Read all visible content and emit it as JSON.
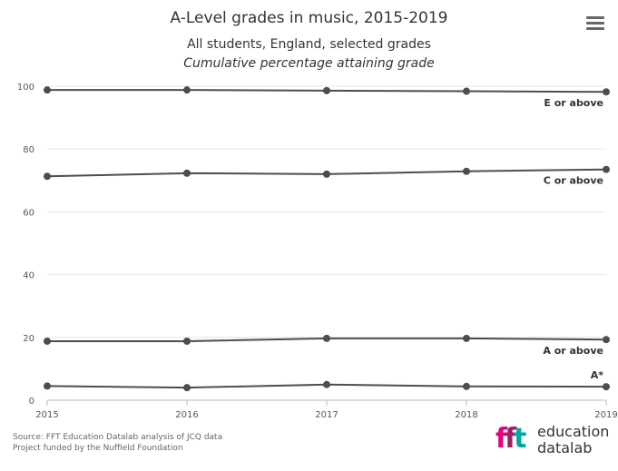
{
  "header": {
    "title": "A-Level grades in music, 2015-2019",
    "subtitle": "All students, England, selected grades",
    "subtitle2": "Cumulative percentage attaining grade",
    "menu_icon": "hamburger-menu-icon"
  },
  "footer": {
    "source_line1": "Source: FFT Education Datalab analysis of JCQ data",
    "source_line2": "Project funded by the Nuffield Foundation",
    "logo_mark": "fft",
    "logo_line1": "education",
    "logo_line2": "datalab",
    "logo_colors": [
      "#e6007e",
      "#9e1f63",
      "#00a99d"
    ]
  },
  "chart_data": {
    "type": "line",
    "title": "A-Level grades in music, 2015-2019",
    "subtitle": "All students, England, selected grades",
    "x": [
      "2015",
      "2016",
      "2017",
      "2018",
      "2019"
    ],
    "ylim": [
      0,
      100
    ],
    "yticks": [
      0,
      20,
      40,
      60,
      80,
      100
    ],
    "grid": true,
    "line_color": "#4d4d4d",
    "series": [
      {
        "name": "E or above",
        "values": [
          98.8,
          98.8,
          98.6,
          98.4,
          98.2
        ]
      },
      {
        "name": "C or above",
        "values": [
          71.3,
          72.3,
          72.0,
          72.9,
          73.5
        ]
      },
      {
        "name": "A or above",
        "values": [
          18.8,
          18.8,
          19.7,
          19.7,
          19.3
        ]
      },
      {
        "name": "A*",
        "values": [
          4.5,
          4.0,
          5.0,
          4.4,
          4.3
        ]
      }
    ]
  }
}
